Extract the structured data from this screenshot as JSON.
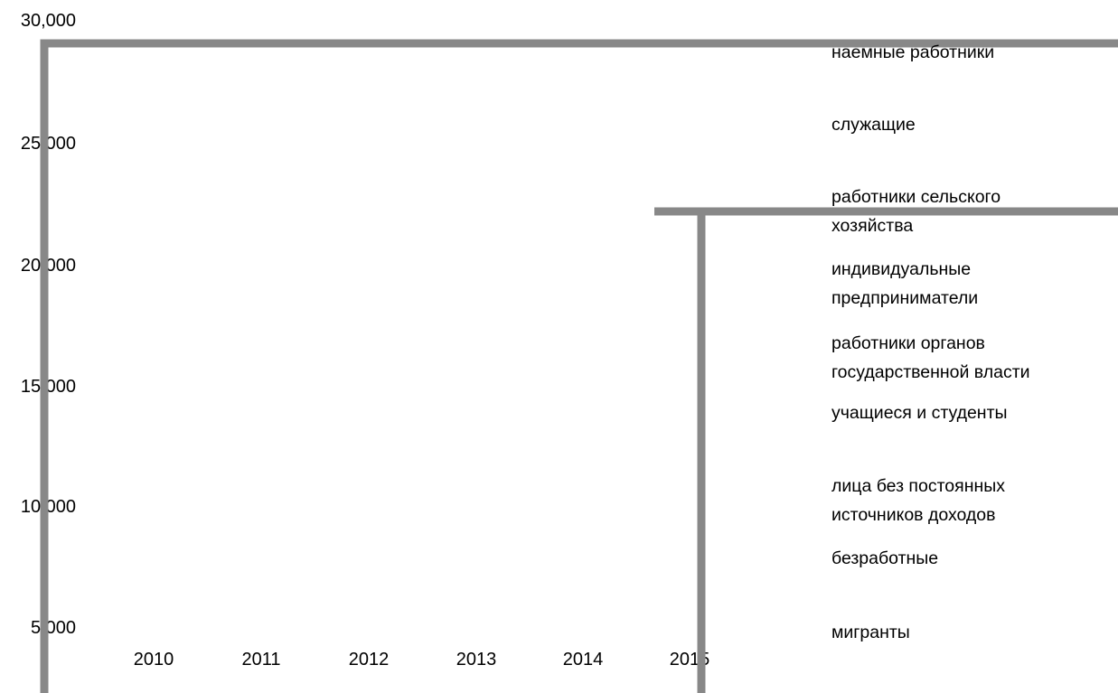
{
  "chart_data": {
    "type": "line",
    "title": "",
    "xlabel": "",
    "ylabel": "",
    "y_ticks": [
      "30,000",
      "25,000",
      "20,000",
      "15,000",
      "10,000",
      "5,000"
    ],
    "y_tick_values": [
      30000,
      25000,
      20000,
      15000,
      10000,
      5000
    ],
    "x_categories": [
      "2010",
      "2011",
      "2012",
      "2013",
      "2014",
      "2015"
    ],
    "ylim": [
      5000,
      30000
    ],
    "legend_position": "right",
    "legend": [
      "наемные работники",
      "служащие",
      "работники сельского хозяйства",
      "индивидуальные предприниматели",
      "работники органов государственной власти",
      "учащиеся и студенты",
      "лица без постоянных источников доходов",
      "безработные",
      "мигранты"
    ],
    "series": [],
    "line_color": "#888888"
  }
}
